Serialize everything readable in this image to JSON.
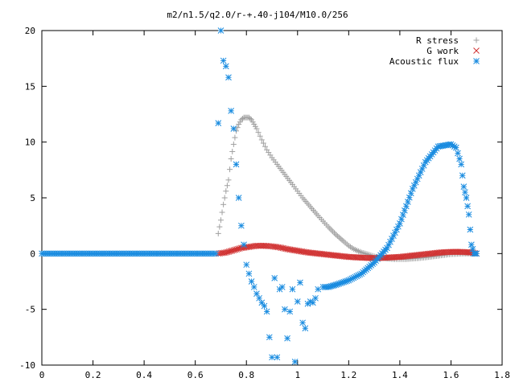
{
  "chart_data": {
    "type": "scatter",
    "title": "m2/n1.5/q2.0/r-+.40-j104/M10.0/256",
    "xlabel": "",
    "ylabel": "",
    "xlim": [
      0,
      1.8
    ],
    "ylim": [
      -10,
      20
    ],
    "xticks": [
      "0",
      "0.2",
      "0.4",
      "0.6",
      "0.8",
      "1",
      "1.2",
      "1.4",
      "1.6",
      "1.8"
    ],
    "yticks": [
      "-10",
      "-5",
      "0",
      "5",
      "10",
      "15",
      "20"
    ],
    "grid": false,
    "legend_position": "top-right",
    "series": [
      {
        "name": "R stress",
        "marker": "plus",
        "color": "#a0a0a0",
        "x": [
          0.69,
          0.7,
          0.71,
          0.72,
          0.73,
          0.74,
          0.75,
          0.76,
          0.77,
          0.78,
          0.79,
          0.8,
          0.81,
          0.82,
          0.83,
          0.84,
          0.86,
          0.88,
          0.9,
          0.92,
          0.95,
          0.98,
          1.0,
          1.02,
          1.05,
          1.08,
          1.1,
          1.12,
          1.15,
          1.18,
          1.2,
          1.22,
          1.25,
          1.28,
          1.3,
          1.32,
          1.35,
          1.38,
          1.4,
          1.42,
          1.45,
          1.48,
          1.5,
          1.55,
          1.6,
          1.65,
          1.7
        ],
        "y": [
          1.8,
          3.0,
          4.4,
          5.6,
          6.6,
          8.5,
          9.8,
          11.0,
          11.6,
          12.0,
          12.2,
          12.2,
          12.2,
          12.0,
          11.6,
          11.2,
          10.2,
          9.3,
          8.6,
          8.0,
          7.1,
          6.2,
          5.6,
          5.0,
          4.2,
          3.4,
          2.9,
          2.4,
          1.7,
          1.1,
          0.7,
          0.4,
          0.1,
          -0.1,
          -0.25,
          -0.35,
          -0.45,
          -0.5,
          -0.5,
          -0.5,
          -0.45,
          -0.4,
          -0.35,
          -0.2,
          -0.05,
          0.0,
          0.0
        ]
      },
      {
        "name": "G work",
        "marker": "cross",
        "color": "#d03030",
        "x": [
          0.69,
          0.72,
          0.75,
          0.78,
          0.81,
          0.84,
          0.87,
          0.9,
          0.93,
          0.96,
          1.0,
          1.04,
          1.08,
          1.12,
          1.16,
          1.2,
          1.24,
          1.28,
          1.32,
          1.36,
          1.4,
          1.44,
          1.48,
          1.52,
          1.56,
          1.6,
          1.64,
          1.68,
          1.7
        ],
        "y": [
          0.0,
          0.1,
          0.3,
          0.5,
          0.6,
          0.7,
          0.7,
          0.65,
          0.55,
          0.4,
          0.25,
          0.1,
          0.0,
          -0.1,
          -0.2,
          -0.3,
          -0.35,
          -0.4,
          -0.4,
          -0.35,
          -0.3,
          -0.2,
          -0.1,
          0.0,
          0.1,
          0.15,
          0.15,
          0.1,
          0.0
        ]
      },
      {
        "name": "Acoustic flux",
        "marker": "star",
        "color": "#1a8ce0",
        "x": [
          0.0,
          0.1,
          0.2,
          0.3,
          0.4,
          0.5,
          0.6,
          0.68,
          0.69,
          0.7,
          0.71,
          0.72,
          0.73,
          0.74,
          0.75,
          0.76,
          0.77,
          0.78,
          0.79,
          0.8,
          0.81,
          0.82,
          0.83,
          0.84,
          0.85,
          0.86,
          0.87,
          0.88,
          0.89,
          0.9,
          0.91,
          0.92,
          0.93,
          0.94,
          0.95,
          0.96,
          0.97,
          0.98,
          0.99,
          1.0,
          1.01,
          1.02,
          1.03,
          1.04,
          1.05,
          1.06,
          1.07,
          1.08,
          1.1,
          1.12,
          1.15,
          1.2,
          1.25,
          1.3,
          1.35,
          1.4,
          1.45,
          1.5,
          1.55,
          1.6,
          1.62,
          1.64,
          1.65,
          1.66,
          1.67,
          1.68,
          1.69,
          1.7
        ],
        "y": [
          0,
          0,
          0,
          0,
          0,
          0,
          0,
          0,
          11.7,
          20.0,
          17.3,
          16.8,
          15.8,
          12.8,
          11.2,
          8.0,
          5.0,
          2.5,
          0.8,
          -1.0,
          -1.8,
          -2.5,
          -3.0,
          -3.6,
          -4.0,
          -4.4,
          -4.7,
          -5.2,
          -7.5,
          -9.3,
          -2.2,
          -9.3,
          -3.2,
          -3.0,
          -5.0,
          -7.6,
          -5.2,
          -3.2,
          -9.7,
          -4.3,
          -2.6,
          -6.2,
          -6.7,
          -4.5,
          -4.3,
          -4.4,
          -4.0,
          -3.2,
          -3.0,
          -3.0,
          -2.8,
          -2.4,
          -1.8,
          -0.8,
          0.5,
          2.7,
          5.8,
          8.2,
          9.6,
          9.8,
          9.5,
          8.0,
          6.0,
          5.0,
          3.5,
          0.8,
          0.0,
          0.0
        ]
      }
    ]
  }
}
